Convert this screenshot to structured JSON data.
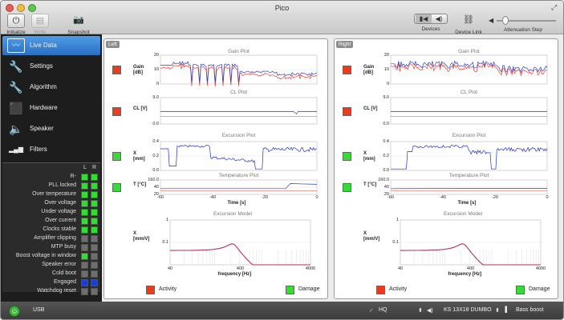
{
  "window": {
    "title": "Pico"
  },
  "toolbar": {
    "initialize": {
      "label": "Initialize",
      "icon": "power-icon"
    },
    "write": {
      "label": "Write",
      "icon": "drive-icon"
    },
    "snapshot": {
      "label": "Snapshot",
      "icon": "camera-icon"
    },
    "devices": {
      "label": "Devices"
    },
    "device_link": {
      "label": "Device Link"
    },
    "attenuation": {
      "label": "Attenuation Step",
      "level": 0.1
    }
  },
  "sidebar": {
    "items": [
      {
        "label": "Live Data",
        "icon": "live-data-icon",
        "active": true
      },
      {
        "label": "Settings",
        "icon": "wrench-icon",
        "active": false
      },
      {
        "label": "Algorithm",
        "icon": "wrench-icon",
        "active": false
      },
      {
        "label": "Hardware",
        "icon": "cube-icon",
        "active": false
      },
      {
        "label": "Speaker",
        "icon": "speaker-icon",
        "active": false
      },
      {
        "label": "Filters",
        "icon": "bars-icon",
        "active": false
      }
    ]
  },
  "status": {
    "col_left": "L",
    "col_right": "R",
    "rows": [
      {
        "label": "R-",
        "l": "green",
        "r": "green"
      },
      {
        "label": "PLL locked",
        "l": "green",
        "r": "green"
      },
      {
        "label": "Over temperature",
        "l": "green",
        "r": "green"
      },
      {
        "label": "Over voltage",
        "l": "green",
        "r": "green"
      },
      {
        "label": "Under voltage",
        "l": "green",
        "r": "green"
      },
      {
        "label": "Over current",
        "l": "green",
        "r": "green"
      },
      {
        "label": "Clocks stable",
        "l": "green",
        "r": "green"
      },
      {
        "label": "Amplifier clipping",
        "l": "gray",
        "r": "gray"
      },
      {
        "label": "MTP busy",
        "l": "gray",
        "r": "gray"
      },
      {
        "label": "Boost voltage in window",
        "l": "green",
        "r": "gray"
      },
      {
        "label": "Speaker error",
        "l": "gray",
        "r": "gray"
      },
      {
        "label": "Cold boot",
        "l": "gray",
        "r": "gray"
      },
      {
        "label": "Engaged",
        "l": "blue",
        "r": "blue"
      },
      {
        "label": "Watchdog reset",
        "l": "gray",
        "r": "gray"
      }
    ],
    "colors": {
      "green": "#33dd33",
      "gray": "#6e6e6e",
      "blue": "#1a3fd6"
    }
  },
  "panels": [
    {
      "tag": "Left",
      "gain": {
        "title": "Gain Plot",
        "label": "Gain\n[dB]",
        "ticks": [
          "20",
          "10",
          "0"
        ]
      },
      "cl": {
        "title": "CL Plot",
        "label": "CL [V]",
        "ticks": [
          "9.0",
          "0.0"
        ]
      },
      "exc": {
        "title": "Excursion Plot",
        "label": "X\n[mm]",
        "ticks": [
          "0.4",
          "0.2",
          "0.0"
        ]
      },
      "temp": {
        "title": "Temperature Plot",
        "label": "T [°C]",
        "ticks": [
          "160.0",
          "40",
          "20"
        ]
      },
      "time": {
        "label": "Time [s]",
        "ticks": [
          "-60",
          "-40",
          "-20",
          "0"
        ]
      },
      "model": {
        "title": "Excursion Model",
        "label": "X\n[mm/V]",
        "yticks": [
          "1",
          "0.1"
        ],
        "xlabel": "frequency [Hz]",
        "xticks": [
          "40",
          "400",
          "4000"
        ]
      },
      "activity": {
        "label": "Activity",
        "color": "#ee3a1a"
      },
      "damage": {
        "label": "Damage",
        "color": "#33dd33"
      },
      "indicators": {
        "gain": "#ee3a1a",
        "cl": "#ee3a1a",
        "exc": "#33dd33",
        "temp": "#33dd33"
      }
    },
    {
      "tag": "Right",
      "gain": {
        "title": "Gain Plot",
        "label": "Gain\n[dB]",
        "ticks": [
          "20",
          "10",
          "0"
        ]
      },
      "cl": {
        "title": "CL Plot",
        "label": "CL [V]",
        "ticks": [
          "9.0",
          "0.0"
        ]
      },
      "exc": {
        "title": "Excursion Plot",
        "label": "X\n[mm]",
        "ticks": [
          "0.4",
          "0.2",
          "0.0"
        ]
      },
      "temp": {
        "title": "Temperature Plot",
        "label": "T [°C]",
        "ticks": [
          "160.0",
          "40",
          "20"
        ]
      },
      "time": {
        "label": "Time [s]",
        "ticks": [
          "-60",
          "-40",
          "-20",
          "0"
        ]
      },
      "model": {
        "title": "Excursion Model",
        "label": "X\n[mm/V]",
        "yticks": [
          "1",
          "0.1"
        ],
        "xlabel": "frequency [Hz]",
        "xticks": [
          "40",
          "400",
          "4000"
        ]
      },
      "activity": {
        "label": "Activity",
        "color": "#ee3a1a"
      },
      "damage": {
        "label": "Damage",
        "color": "#33dd33"
      },
      "indicators": {
        "gain": "#ee3a1a",
        "cl": "#ee3a1a",
        "exc": "#33dd33",
        "temp": "#33dd33"
      }
    }
  ],
  "bottom": {
    "connection": "USB",
    "hq": "HQ",
    "preset": "KS 13X18 DUMBO",
    "mode": "Bass boost"
  }
}
